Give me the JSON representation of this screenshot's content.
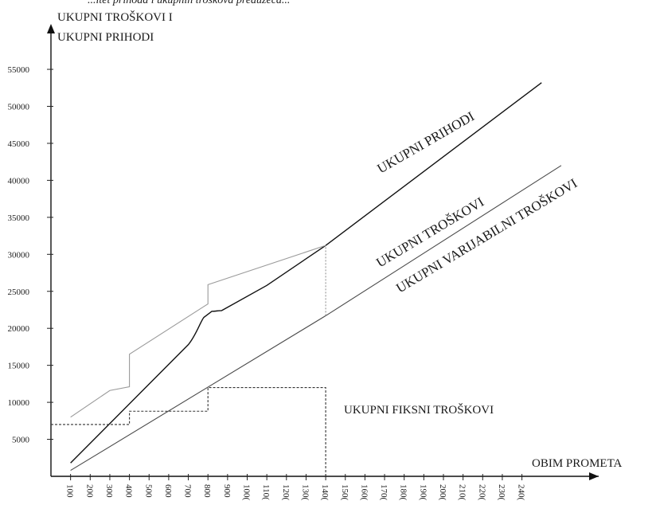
{
  "chart_data": {
    "type": "line",
    "title": "",
    "caption_fragment": "...itet prihoda i ukupnih troškova preduzeća...",
    "ylabel_lines": [
      "UKUPNI TROŠKOVI I",
      "UKUPNI PRIHODI"
    ],
    "xlabel": "OBIM PROMETA",
    "y_ticks": [
      5000,
      10000,
      15000,
      20000,
      25000,
      30000,
      35000,
      40000,
      45000,
      50000,
      55000
    ],
    "y_tick_labels": [
      "5000",
      "10000",
      "15000",
      "20000",
      "25000",
      "30000",
      "35000",
      "40000",
      "45000",
      "50000",
      "55000"
    ],
    "x_ticks": [
      100,
      200,
      300,
      400,
      500,
      600,
      700,
      800,
      900,
      1000,
      1100,
      1200,
      1300,
      1400,
      1500,
      1600,
      1700,
      1800,
      1900,
      2000,
      2100,
      2200,
      2300,
      2400
    ],
    "x_tick_labels": [
      "100",
      "200",
      "300",
      "400",
      "500",
      "600",
      "700",
      "800",
      "900",
      "100(",
      "110(",
      "120(",
      "130(",
      "140(",
      "150(",
      "160(",
      "170(",
      "180(",
      "190(",
      "200(",
      "210(",
      "220(",
      "230(",
      "240("
    ],
    "ylim": [
      0,
      58000
    ],
    "xlim": [
      0,
      2600
    ],
    "series": [
      {
        "name": "UKUPNI PRIHODI",
        "style": "solid",
        "color": "#111111",
        "points": [
          [
            100,
            1800
          ],
          [
            700,
            17800
          ],
          [
            780,
            21500
          ],
          [
            820,
            22300
          ],
          [
            870,
            22400
          ],
          [
            1100,
            25800
          ],
          [
            1400,
            31200
          ],
          [
            2500,
            53200
          ]
        ]
      },
      {
        "name": "UKUPNI TROŠKOVI",
        "style": "solid",
        "color": "#9a9a9a",
        "points": [
          [
            100,
            8000
          ],
          [
            300,
            11600
          ],
          [
            400,
            12100
          ],
          [
            400,
            16500
          ],
          [
            800,
            23300
          ],
          [
            800,
            25900
          ],
          [
            1400,
            31200
          ]
        ]
      },
      {
        "name": "UKUPNI VARIJABILNI TROŠKOVI",
        "style": "solid",
        "color": "#4a4a4a",
        "points": [
          [
            100,
            800
          ],
          [
            1400,
            21700
          ],
          [
            2600,
            42000
          ]
        ]
      },
      {
        "name": "UKUPNI FIKSNI TROŠKOVI",
        "style": "dashed",
        "color": "#333333",
        "points": [
          [
            0,
            7000
          ],
          [
            400,
            7000
          ],
          [
            400,
            8800
          ],
          [
            800,
            8800
          ],
          [
            800,
            12000
          ],
          [
            1400,
            12000
          ],
          [
            1400,
            0
          ]
        ]
      }
    ],
    "annotations": [
      {
        "type": "vertical-dashed",
        "x": 1400,
        "y_from": 21700,
        "y_to": 31200,
        "color": "#888888"
      }
    ],
    "label_text": {
      "prihodi": "UKUPNI PRIHODI",
      "troskovi": "UKUPNI TROŠKOVI",
      "varijabilni": "UKUPNI VARIJABILNI TROŠKOVI",
      "fiksni": "UKUPNI FIKSNI TROŠKOVI"
    },
    "grid": false,
    "legend": "none"
  }
}
